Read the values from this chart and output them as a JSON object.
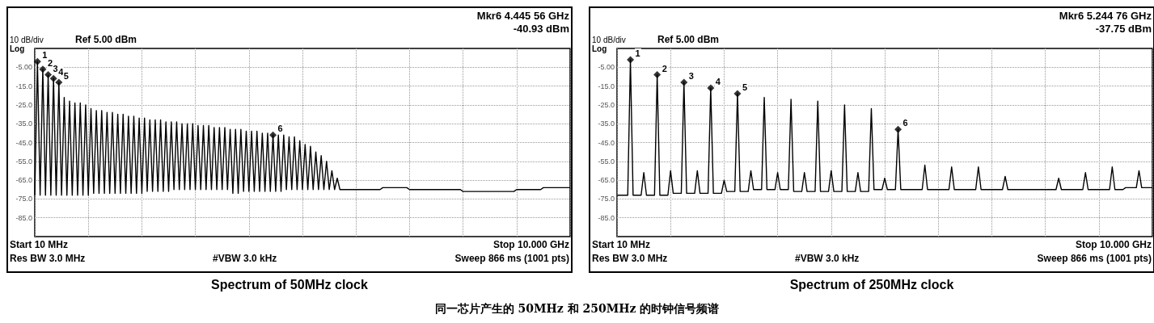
{
  "chart_data": [
    {
      "type": "line",
      "title": "Spectrum of 50MHz clock",
      "categories": [
        null,
        null,
        null,
        null,
        null,
        null,
        null,
        null,
        null,
        null,
        null,
        null,
        null,
        null,
        null,
        null,
        null,
        null,
        null,
        null,
        null,
        null,
        null,
        null,
        null,
        null,
        null,
        null,
        null,
        null,
        null,
        null,
        null,
        null,
        null,
        null,
        null,
        null,
        null,
        null,
        null,
        null,
        null,
        null,
        null,
        null,
        null,
        null,
        null,
        null,
        null,
        null,
        null,
        null,
        null,
        null,
        null,
        null,
        null,
        null,
        null,
        null,
        null,
        null,
        null,
        null,
        null,
        null,
        null,
        null,
        null,
        null,
        null,
        null,
        null,
        null,
        null,
        null,
        null,
        null,
        null,
        null,
        null,
        null,
        null,
        null,
        null,
        null,
        null,
        null,
        null,
        null,
        null,
        null,
        null,
        null,
        null,
        null,
        null,
        null,
        null,
        null,
        null,
        null,
        null,
        null,
        null,
        null,
        null,
        null,
        null,
        null,
        null,
        null,
        null,
        null,
        null,
        null,
        null,
        null,
        null,
        null,
        null,
        null,
        null,
        null,
        null,
        null,
        null,
        null,
        null,
        null,
        null,
        null,
        null,
        null,
        null,
        null,
        null,
        null,
        null,
        null,
        null,
        null,
        null,
        null,
        null,
        null,
        null,
        null,
        null,
        null,
        null,
        null,
        null,
        null,
        null,
        null,
        null,
        null,
        null,
        null,
        null,
        null,
        null,
        null,
        null,
        null,
        null,
        null,
        null,
        null,
        null,
        null,
        null,
        null,
        null,
        null,
        null,
        null,
        null,
        null,
        null,
        null,
        null,
        null,
        null,
        null,
        null,
        null,
        null,
        null,
        null,
        null,
        null,
        null,
        null,
        null,
        null,
        null,
        null
      ],
      "ylim": [
        -95,
        5
      ],
      "yticks": [
        {
          "value": -5,
          "label": "-5.00"
        },
        {
          "value": -15,
          "label": "-15.0"
        },
        {
          "value": -25,
          "label": "-25.0"
        },
        {
          "value": -35,
          "label": "-35.0"
        },
        {
          "value": -45,
          "label": "-45.0"
        },
        {
          "value": -55,
          "label": "-55.0"
        },
        {
          "value": -65,
          "label": "-65.0"
        },
        {
          "value": -75,
          "label": "-75.0"
        },
        {
          "value": -85,
          "label": "-85.0"
        }
      ],
      "grid": true,
      "tick_labels": "y",
      "series": [
        {
          "color": "#000000",
          "values": [
            -73,
            -2,
            -73,
            -6,
            -73,
            -9,
            -73,
            -11,
            -73,
            -13,
            -73,
            -21,
            -73,
            -23,
            -73,
            -24,
            -73,
            -24,
            -73,
            -25,
            -73,
            -27,
            -72,
            -28,
            -72,
            -28,
            -72,
            -29,
            -72,
            -29,
            -72,
            -30,
            -72,
            -30,
            -72,
            -31,
            -72,
            -31,
            -72,
            -32,
            -72,
            -32,
            -71,
            -33,
            -71,
            -33,
            -71,
            -33,
            -71,
            -34,
            -71,
            -34,
            -70,
            -34,
            -70,
            -35,
            -70,
            -35,
            -70,
            -35,
            -70,
            -36,
            -70,
            -36,
            -70,
            -36,
            -70,
            -37,
            -70,
            -37,
            -70,
            -37,
            -70,
            -38,
            -72,
            -38,
            -72,
            -38,
            -71,
            -39,
            -71,
            -39,
            -71,
            -39,
            -71,
            -40,
            -71,
            -40,
            -71,
            -41,
            -71,
            -41,
            -71,
            -41,
            -70,
            -42,
            -70,
            -42,
            -70,
            -44,
            -70,
            -46,
            -70,
            -47,
            -70,
            -50,
            -70,
            -52,
            -70,
            -55,
            -70,
            -60,
            -70,
            -64,
            -70,
            -70,
            -70,
            -70,
            -70,
            -70,
            -70,
            -70,
            -70,
            -70,
            -70,
            -70,
            -70,
            -70,
            -70,
            -70,
            -69,
            -69,
            -69,
            -69,
            -69,
            -69,
            -69,
            -69,
            -69,
            -69,
            -70,
            -70,
            -70,
            -70,
            -70,
            -70,
            -70,
            -70,
            -70,
            -70,
            -70,
            -70,
            -70,
            -70,
            -70,
            -70,
            -70,
            -70,
            -70,
            -70,
            -71,
            -71,
            -71,
            -71,
            -71,
            -71,
            -71,
            -71,
            -71,
            -71,
            -71,
            -71,
            -71,
            -71,
            -71,
            -71,
            -71,
            -71,
            -71,
            -71,
            -70,
            -70,
            -70,
            -70,
            -70,
            -70,
            -70,
            -70,
            -70,
            -70,
            -69,
            -69,
            -69,
            -69,
            -69,
            -69,
            -69,
            -69,
            -69,
            -69,
            -69
          ]
        },
        {
          "type": "scatter",
          "marker": "diamond",
          "color": "#000000",
          "values": [
            null,
            -2,
            null,
            -6,
            null,
            -9,
            null,
            -11,
            null,
            -13,
            null,
            null,
            null,
            null,
            null,
            null,
            null,
            null,
            null,
            null,
            null,
            null,
            null,
            null,
            null,
            null,
            null,
            null,
            null,
            null,
            null,
            null,
            null,
            null,
            null,
            null,
            null,
            null,
            null,
            null,
            null,
            null,
            null,
            null,
            null,
            null,
            null,
            null,
            null,
            null,
            null,
            null,
            null,
            null,
            null,
            null,
            null,
            null,
            null,
            null,
            null,
            null,
            null,
            null,
            null,
            null,
            null,
            null,
            null,
            null,
            null,
            null,
            null,
            null,
            null,
            null,
            null,
            null,
            null,
            null,
            null,
            null,
            null,
            null,
            null,
            null,
            null,
            null,
            null,
            -41,
            null,
            null,
            null,
            null,
            null,
            null,
            null,
            null,
            null,
            null,
            null,
            null,
            null,
            null,
            null,
            null,
            null,
            null,
            null,
            null,
            null,
            null,
            null,
            null,
            null,
            null,
            null,
            null,
            null,
            null,
            null,
            null,
            null,
            null,
            null,
            null,
            null,
            null,
            null,
            null,
            null,
            null,
            null,
            null,
            null,
            null,
            null,
            null,
            null,
            null,
            null,
            null,
            null,
            null,
            null,
            null,
            null,
            null,
            null,
            null,
            null,
            null,
            null,
            null,
            null,
            null,
            null,
            null,
            null,
            null,
            null,
            null,
            null,
            null,
            null,
            null,
            null,
            null,
            null,
            null,
            null,
            null,
            null,
            null,
            null,
            null,
            null,
            null,
            null,
            null,
            null,
            null,
            null,
            null,
            null,
            null,
            null,
            null,
            null,
            null,
            null,
            null,
            null,
            null,
            null,
            null,
            null,
            null,
            null,
            null,
            null
          ]
        }
      ],
      "annotations": [
        "10 dB/div",
        "Log",
        "Ref 5.00 dBm",
        "Mkr6 4.445 56 GHz",
        "-40.93 dBm",
        "Start 10 MHz",
        "Res BW 3.0 MHz",
        "#VBW 3.0 kHz",
        "Stop 10.000 GHz",
        "Sweep 866 ms (1001 pts)",
        "1",
        "2",
        "3",
        "4",
        "5",
        "6",
        "同一芯片产生的 50MHz 和 250MHz 的时钟信号频谱"
      ]
    },
    {
      "type": "line",
      "title": "Spectrum of 250MHz clock",
      "categories": [
        null,
        null,
        null,
        null,
        null,
        null,
        null,
        null,
        null,
        null,
        null,
        null,
        null,
        null,
        null,
        null,
        null,
        null,
        null,
        null,
        null,
        null,
        null,
        null,
        null,
        null,
        null,
        null,
        null,
        null,
        null,
        null,
        null,
        null,
        null,
        null,
        null,
        null,
        null,
        null,
        null,
        null,
        null,
        null,
        null,
        null,
        null,
        null,
        null,
        null,
        null,
        null,
        null,
        null,
        null,
        null,
        null,
        null,
        null,
        null,
        null,
        null,
        null,
        null,
        null,
        null,
        null,
        null,
        null,
        null,
        null,
        null,
        null,
        null,
        null,
        null,
        null,
        null,
        null,
        null,
        null,
        null,
        null,
        null,
        null,
        null,
        null,
        null,
        null,
        null,
        null,
        null,
        null,
        null,
        null,
        null,
        null,
        null,
        null,
        null,
        null,
        null,
        null,
        null,
        null,
        null,
        null,
        null,
        null,
        null,
        null,
        null,
        null,
        null,
        null,
        null,
        null,
        null,
        null,
        null,
        null,
        null,
        null,
        null,
        null,
        null,
        null,
        null,
        null,
        null,
        null,
        null,
        null,
        null,
        null,
        null,
        null,
        null,
        null,
        null,
        null,
        null,
        null,
        null,
        null,
        null,
        null,
        null,
        null,
        null,
        null,
        null,
        null,
        null,
        null,
        null,
        null,
        null,
        null,
        null,
        null,
        null,
        null,
        null,
        null,
        null,
        null,
        null,
        null,
        null,
        null,
        null,
        null,
        null,
        null,
        null,
        null,
        null,
        null,
        null,
        null,
        null,
        null,
        null,
        null,
        null,
        null,
        null,
        null,
        null,
        null,
        null,
        null,
        null,
        null,
        null,
        null,
        null,
        null,
        null,
        null
      ],
      "ylim": [
        -95,
        5
      ],
      "yticks": [
        {
          "value": -5,
          "label": "-5.00"
        },
        {
          "value": -15,
          "label": "-15.0"
        },
        {
          "value": -25,
          "label": "-25.0"
        },
        {
          "value": -35,
          "label": "-35.0"
        },
        {
          "value": -45,
          "label": "-45.0"
        },
        {
          "value": -55,
          "label": "-55.0"
        },
        {
          "value": -65,
          "label": "-65.0"
        },
        {
          "value": -75,
          "label": "-75.0"
        },
        {
          "value": -85,
          "label": "-85.0"
        }
      ],
      "grid": true,
      "tick_labels": "y",
      "series": [
        {
          "color": "#000000",
          "values": [
            -73,
            -73,
            -73,
            -73,
            -73,
            -1,
            -73,
            -73,
            -73,
            -73,
            -61,
            -73,
            -73,
            -73,
            -73,
            -9,
            -73,
            -73,
            -73,
            -73,
            -60,
            -72,
            -72,
            -72,
            -72,
            -13,
            -72,
            -72,
            -72,
            -72,
            -60,
            -72,
            -72,
            -72,
            -72,
            -16,
            -72,
            -72,
            -72,
            -72,
            -65,
            -71,
            -71,
            -71,
            -71,
            -19,
            -71,
            -71,
            -71,
            -71,
            -60,
            -70,
            -70,
            -70,
            -70,
            -21,
            -70,
            -70,
            -70,
            -70,
            -61,
            -70,
            -70,
            -70,
            -70,
            -22,
            -71,
            -71,
            -71,
            -71,
            -61,
            -71,
            -71,
            -71,
            -71,
            -23,
            -71,
            -71,
            -71,
            -71,
            -60,
            -71,
            -71,
            -71,
            -71,
            -25,
            -71,
            -71,
            -71,
            -71,
            -61,
            -71,
            -71,
            -71,
            -71,
            -27,
            -70,
            -70,
            -70,
            -70,
            -64,
            -70,
            -70,
            -70,
            -70,
            -38,
            -70,
            -70,
            -70,
            -70,
            -70,
            -70,
            -70,
            -70,
            -70,
            -57,
            -70,
            -70,
            -70,
            -70,
            -70,
            -70,
            -70,
            -70,
            -70,
            -58,
            -70,
            -70,
            -70,
            -70,
            -70,
            -70,
            -70,
            -70,
            -70,
            -58,
            -70,
            -70,
            -70,
            -70,
            -70,
            -70,
            -70,
            -70,
            -70,
            -63,
            -70,
            -70,
            -70,
            -70,
            -70,
            -70,
            -70,
            -70,
            -70,
            -70,
            -70,
            -70,
            -70,
            -70,
            -70,
            -70,
            -70,
            -70,
            -70,
            -64,
            -70,
            -70,
            -70,
            -70,
            -70,
            -70,
            -70,
            -70,
            -70,
            -61,
            -70,
            -70,
            -70,
            -70,
            -70,
            -70,
            -70,
            -70,
            -70,
            -58,
            -70,
            -70,
            -70,
            -70,
            -69,
            -69,
            -69,
            -69,
            -69,
            -60,
            -69,
            -69,
            -69,
            -69,
            -69
          ]
        },
        {
          "type": "scatter",
          "marker": "diamond",
          "color": "#000000",
          "values": [
            null,
            null,
            null,
            null,
            null,
            -1,
            null,
            null,
            null,
            null,
            null,
            null,
            null,
            null,
            null,
            -9,
            null,
            null,
            null,
            null,
            null,
            null,
            null,
            null,
            null,
            -13,
            null,
            null,
            null,
            null,
            null,
            null,
            null,
            null,
            null,
            -16,
            null,
            null,
            null,
            null,
            null,
            null,
            null,
            null,
            null,
            -19,
            null,
            null,
            null,
            null,
            null,
            null,
            null,
            null,
            null,
            null,
            null,
            null,
            null,
            null,
            null,
            null,
            null,
            null,
            null,
            null,
            null,
            null,
            null,
            null,
            null,
            null,
            null,
            null,
            null,
            null,
            null,
            null,
            null,
            null,
            null,
            null,
            null,
            null,
            null,
            null,
            null,
            null,
            null,
            null,
            null,
            null,
            null,
            null,
            null,
            null,
            null,
            null,
            null,
            null,
            null,
            null,
            null,
            null,
            null,
            -38,
            null,
            null,
            null,
            null,
            null,
            null,
            null,
            null,
            null,
            null,
            null,
            null,
            null,
            null,
            null,
            null,
            null,
            null,
            null,
            null,
            null,
            null,
            null,
            null,
            null,
            null,
            null,
            null,
            null,
            null,
            null,
            null,
            null,
            null,
            null,
            null,
            null,
            null,
            null,
            null,
            null,
            null,
            null,
            null,
            null,
            null,
            null,
            null,
            null,
            null,
            null,
            null,
            null,
            null,
            null,
            null,
            null,
            null,
            null,
            null,
            null,
            null,
            null,
            null,
            null,
            null,
            null,
            null,
            null,
            null,
            null,
            null,
            null,
            null,
            null,
            null,
            null,
            null,
            null,
            null,
            null,
            null,
            null,
            null,
            null,
            null,
            null,
            null,
            null,
            null,
            null,
            null,
            null,
            null,
            null
          ]
        }
      ],
      "annotations": [
        "10 dB/div",
        "Log",
        "Ref 5.00 dBm",
        "Mkr6 5.244 76 GHz",
        "-37.75 dBm",
        "Start 10 MHz",
        "Res BW 3.0 MHz",
        "#VBW 3.0 kHz",
        "Stop 10.000 GHz",
        "Sweep 866 ms (1001 pts)",
        "1",
        "2",
        "3",
        "4",
        "5",
        "6"
      ]
    }
  ]
}
